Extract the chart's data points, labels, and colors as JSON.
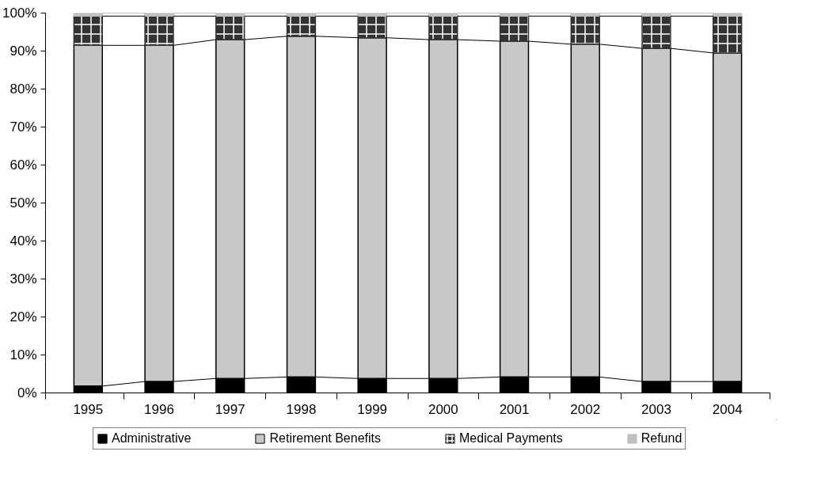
{
  "chart_data": {
    "type": "bar",
    "stacked": true,
    "categories": [
      "1995",
      "1996",
      "1997",
      "1998",
      "1999",
      "2000",
      "2001",
      "2002",
      "2003",
      "2004"
    ],
    "series": [
      {
        "name": "Administrative",
        "color": "#000000",
        "values": [
          1.8,
          3.0,
          3.8,
          4.2,
          3.8,
          3.8,
          4.2,
          4.2,
          3.0,
          3.0
        ]
      },
      {
        "name": "Retirement Benefits",
        "color": "#c8c8c8",
        "values": [
          89.7,
          88.5,
          89.2,
          89.7,
          89.7,
          89.2,
          88.4,
          87.6,
          87.7,
          86.5
        ]
      },
      {
        "name": "Medical Payments",
        "color": "#333333",
        "values": [
          7.7,
          7.7,
          6.2,
          5.3,
          5.7,
          6.2,
          6.6,
          7.4,
          8.5,
          9.7
        ]
      },
      {
        "name": "Refund",
        "color": "#c0c0c0",
        "values": [
          0.8,
          0.8,
          0.8,
          0.8,
          0.8,
          0.8,
          0.8,
          0.8,
          0.8,
          0.8
        ]
      }
    ],
    "ylim": [
      0,
      100
    ],
    "yticks": [
      {
        "value": 0,
        "label": "0%"
      },
      {
        "value": 10,
        "label": "10%"
      },
      {
        "value": 20,
        "label": "20%"
      },
      {
        "value": 30,
        "label": "30%"
      },
      {
        "value": 40,
        "label": "40%"
      },
      {
        "value": 50,
        "label": "50%"
      },
      {
        "value": 60,
        "label": "60%"
      },
      {
        "value": 70,
        "label": "70%"
      },
      {
        "value": 80,
        "label": "80%"
      },
      {
        "value": 90,
        "label": "90%"
      },
      {
        "value": 100,
        "label": "100%"
      }
    ],
    "grid": false,
    "legend": "bottom"
  }
}
